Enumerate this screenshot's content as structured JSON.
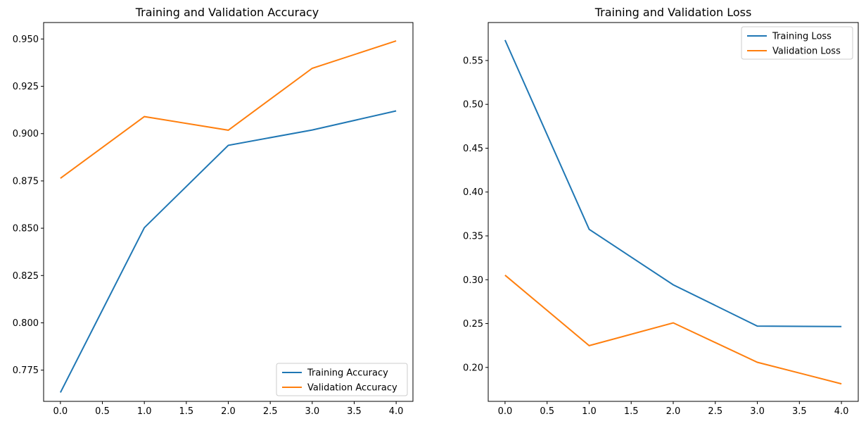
{
  "chart_data": [
    {
      "type": "line",
      "title": "Training and Validation Accuracy",
      "xlabel": "",
      "ylabel": "",
      "x": [
        0,
        1,
        2,
        3,
        4
      ],
      "xlim": [
        -0.2,
        4.2
      ],
      "ylim": [
        0.7585,
        0.9587
      ],
      "xticks": [
        0.0,
        0.5,
        1.0,
        1.5,
        2.0,
        2.5,
        3.0,
        3.5,
        4.0
      ],
      "xtick_labels": [
        "0.0",
        "0.5",
        "1.0",
        "1.5",
        "2.0",
        "2.5",
        "3.0",
        "3.5",
        "4.0"
      ],
      "yticks": [
        0.775,
        0.8,
        0.825,
        0.85,
        0.875,
        0.9,
        0.925,
        0.95
      ],
      "ytick_labels": [
        "0.775",
        "0.800",
        "0.825",
        "0.850",
        "0.875",
        "0.900",
        "0.925",
        "0.950"
      ],
      "grid": false,
      "legend_position": "lower-right",
      "series": [
        {
          "name": "Training Accuracy",
          "color": "#1f77b4",
          "values": [
            0.7632,
            0.8503,
            0.8938,
            0.9019,
            0.912
          ]
        },
        {
          "name": "Validation Accuracy",
          "color": "#ff7f0e",
          "values": [
            0.8764,
            0.909,
            0.9018,
            0.9345,
            0.949
          ]
        }
      ]
    },
    {
      "type": "line",
      "title": "Training and Validation Loss",
      "xlabel": "",
      "ylabel": "",
      "x": [
        0,
        1,
        2,
        3,
        4
      ],
      "xlim": [
        -0.2,
        4.2
      ],
      "ylim": [
        0.1613,
        0.5933
      ],
      "xticks": [
        0.0,
        0.5,
        1.0,
        1.5,
        2.0,
        2.5,
        3.0,
        3.5,
        4.0
      ],
      "xtick_labels": [
        "0.0",
        "0.5",
        "1.0",
        "1.5",
        "2.0",
        "2.5",
        "3.0",
        "3.5",
        "4.0"
      ],
      "yticks": [
        0.2,
        0.25,
        0.3,
        0.35,
        0.4,
        0.45,
        0.5,
        0.55
      ],
      "ytick_labels": [
        "0.20",
        "0.25",
        "0.30",
        "0.35",
        "0.40",
        "0.45",
        "0.50",
        "0.55"
      ],
      "grid": false,
      "legend_position": "upper-right",
      "series": [
        {
          "name": "Training Loss",
          "color": "#1f77b4",
          "values": [
            0.5733,
            0.3575,
            0.2942,
            0.2471,
            0.2466
          ]
        },
        {
          "name": "Validation Loss",
          "color": "#ff7f0e",
          "values": [
            0.3052,
            0.2248,
            0.2508,
            0.2059,
            0.1813
          ]
        }
      ]
    }
  ]
}
